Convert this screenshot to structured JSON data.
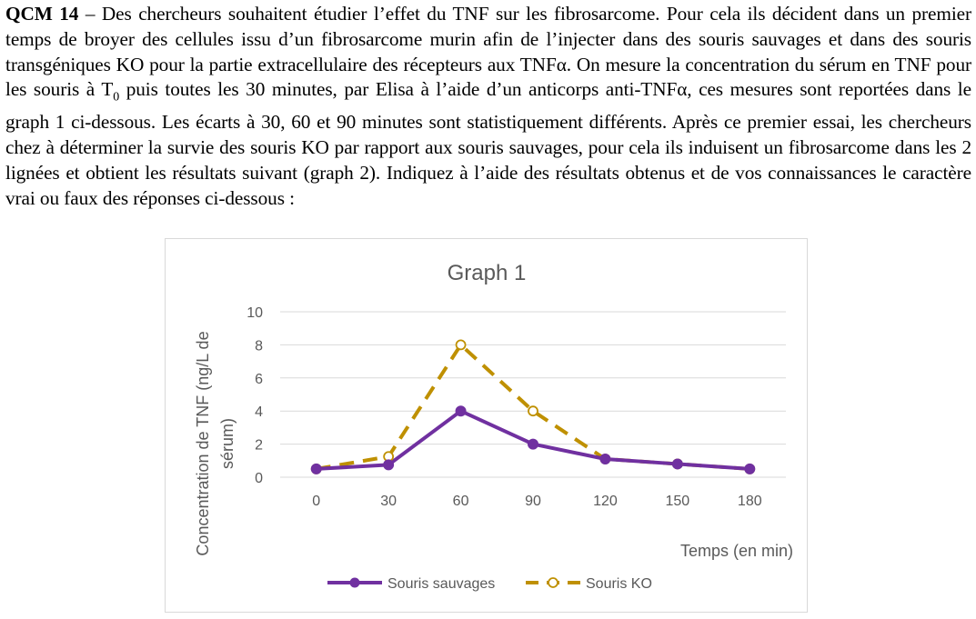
{
  "question": {
    "label": "QCM 14",
    "text": " – Des chercheurs souhaitent étudier l’effet du TNF sur les fibrosarcome. Pour cela ils décident dans un premier temps de broyer des cellules issu d’un fibrosarcome murin afin de l’injecter dans des souris sauvages et dans des souris transgéniques KO pour la partie extracellulaire des récepteurs aux TNFα. On mesure la concentration du sérum en TNF pour les souris à T",
    "subscript": "0",
    "text2": " puis toutes les 30 minutes, par Elisa à l’aide d’un anticorps anti-TNFα, ces mesures sont reportées dans le graph 1 ci-dessous. Les écarts à 30, 60 et 90 minutes sont statistiquement différents. Après ce premier essai, les chercheurs chez à déterminer la survie des souris KO par rapport aux souris sauvages, pour cela ils induisent un fibrosarcome dans les 2 lignées et obtient les résultats suivant (graph 2).  Indiquez à l’aide des résultats obtenus et de vos connaissances le caractère vrai ou faux des réponses ci-dessous :"
  },
  "chart_data": {
    "type": "line",
    "title": "Graph 1",
    "xlabel": "Temps (en min)",
    "ylabel": "Concentration de TNF (ng/L de sérum)",
    "ylabel_lines": [
      "Concentration de TNF (ng/L de",
      "sérum)"
    ],
    "categories": [
      "0",
      "30",
      "60",
      "90",
      "120",
      "150",
      "180"
    ],
    "y_ticks": [
      "0",
      "2",
      "4",
      "6",
      "8",
      "10"
    ],
    "ylim": [
      0,
      10
    ],
    "series": [
      {
        "name": "Souris sauvages",
        "values": [
          0.5,
          0.75,
          4,
          2,
          1.1,
          0.8,
          0.5
        ],
        "color": "#7030a0",
        "style": "solid",
        "marker": "filled-circle"
      },
      {
        "name": "Souris KO",
        "values": [
          0.5,
          1.25,
          8,
          4,
          1.1,
          0.8,
          0.5
        ],
        "color": "#bf9000",
        "style": "dashed",
        "marker": "open-circle"
      }
    ],
    "legend_position": "bottom",
    "grid": true
  }
}
